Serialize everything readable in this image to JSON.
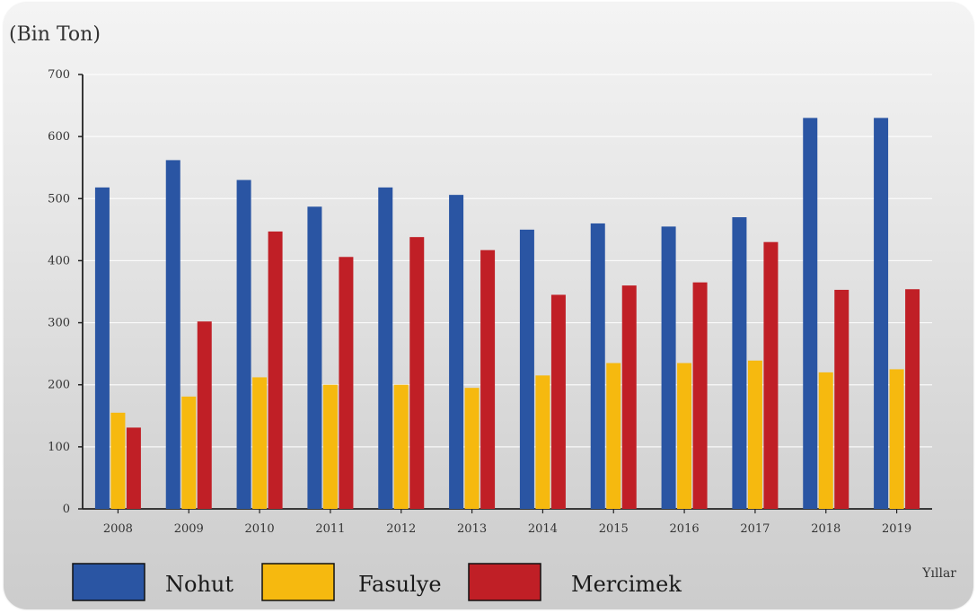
{
  "chart_data": {
    "type": "bar",
    "ylabel": "(Bin Ton)",
    "xlabel": "Yıllar",
    "ylim": [
      0,
      700
    ],
    "yticks": [
      0,
      100,
      200,
      300,
      400,
      500,
      600,
      700
    ],
    "grid": "horizontal",
    "legend_position": "bottom-left",
    "categories": [
      "2008",
      "2009",
      "2010",
      "2011",
      "2012",
      "2013",
      "2014",
      "2015",
      "2016",
      "2017",
      "2018",
      "2019"
    ],
    "series": [
      {
        "name": "Nohut",
        "color": "#2a55a3",
        "values": [
          518,
          562,
          530,
          487,
          518,
          506,
          450,
          460,
          455,
          470,
          630,
          630
        ]
      },
      {
        "name": "Fasulye",
        "color": "#f6b90f",
        "values": [
          155,
          181,
          212,
          200,
          200,
          195,
          215,
          235,
          235,
          239,
          220,
          225
        ]
      },
      {
        "name": "Mercimek",
        "color": "#c01f26",
        "values": [
          131,
          302,
          447,
          406,
          438,
          417,
          345,
          360,
          365,
          430,
          353,
          354
        ]
      }
    ]
  }
}
